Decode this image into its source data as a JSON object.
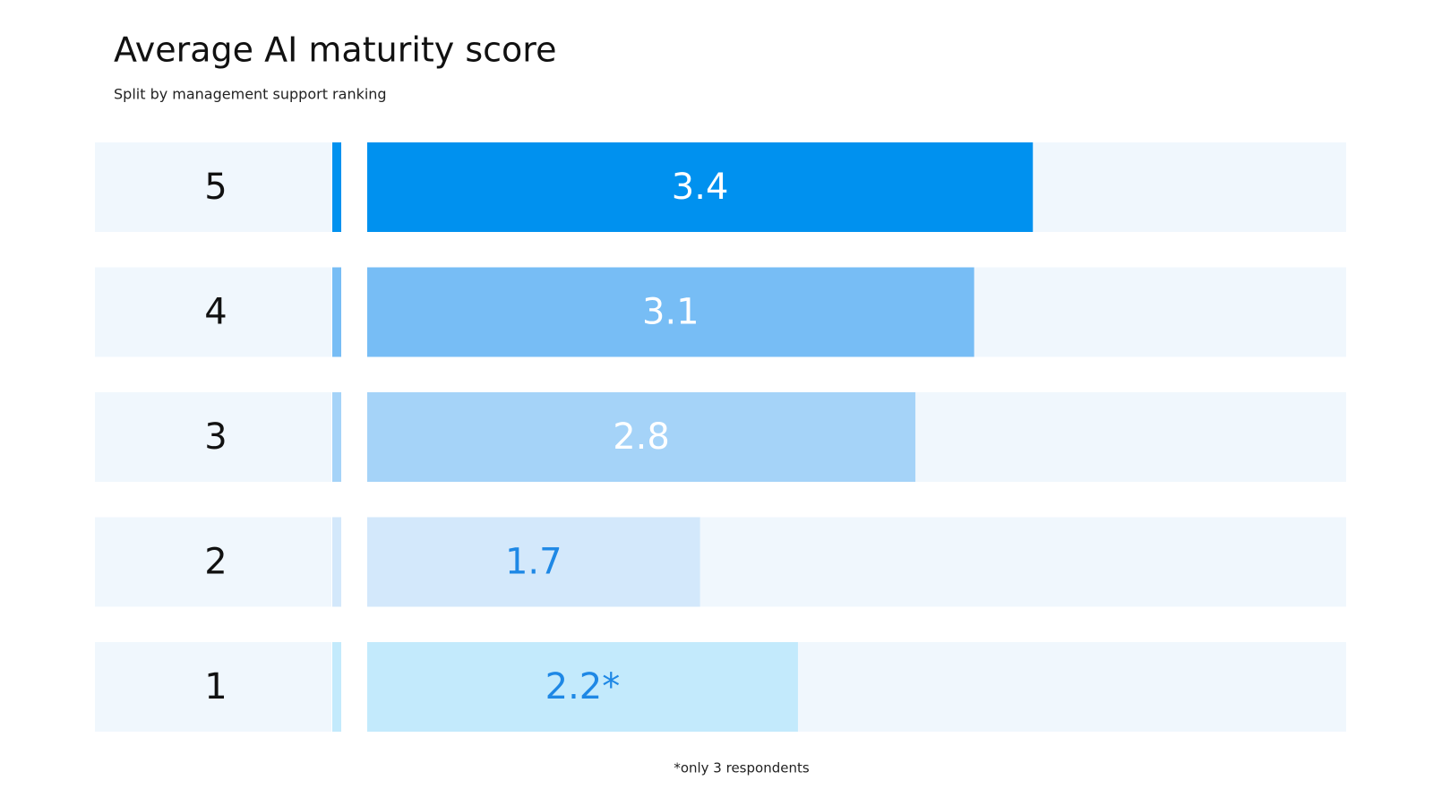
{
  "chart_data": {
    "type": "bar",
    "orientation": "horizontal",
    "title": "Average AI maturity score",
    "subtitle": "Split by management support ranking",
    "categories": [
      "5",
      "4",
      "3",
      "2",
      "1"
    ],
    "values": [
      3.4,
      3.1,
      2.8,
      1.7,
      2.2
    ],
    "value_labels": [
      "3.4",
      "3.1",
      "2.8",
      "1.7",
      "2.2*"
    ],
    "colors": [
      "#0091ef",
      "#77bdf5",
      "#a5d3f8",
      "#d3e8fb",
      "#c3eafc"
    ],
    "label_colors": [
      "#ffffff",
      "#ffffff",
      "#ffffff",
      "#1e88e5",
      "#1e88e5"
    ],
    "track_color": "#f0f7fd",
    "xlim": [
      0,
      5
    ],
    "footnote": "*only 3 respondents"
  }
}
